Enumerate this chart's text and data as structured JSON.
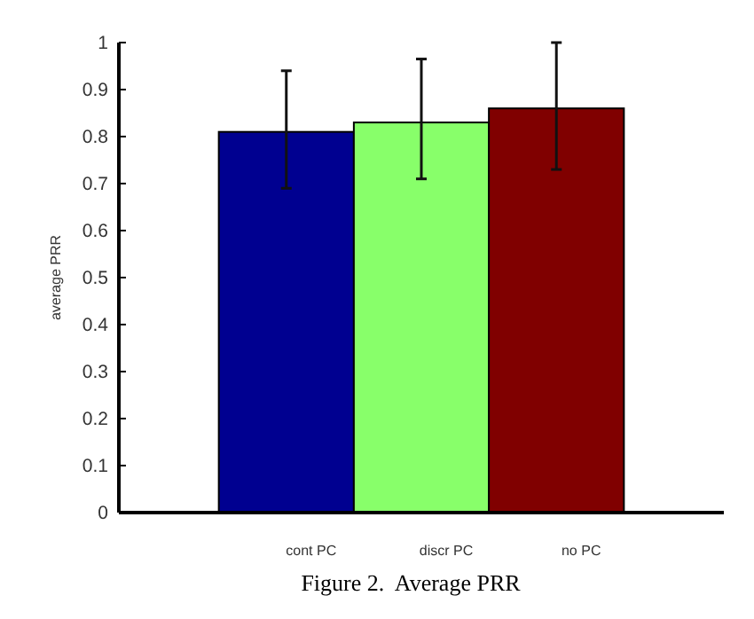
{
  "chart_data": {
    "type": "bar",
    "title": "Figure 2.  Average PRR",
    "ylabel": "average PRR",
    "categories": [
      "cont PC",
      "discr PC",
      "no PC"
    ],
    "values": [
      0.81,
      0.83,
      0.86
    ],
    "errors": [
      [
        0.69,
        0.94
      ],
      [
        0.71,
        0.965
      ],
      [
        0.73,
        1.0
      ]
    ],
    "colors": [
      "#000090",
      "#88ff6a",
      "#800000"
    ],
    "ylim": [
      0,
      1
    ],
    "yticks": [
      0,
      0.1,
      0.2,
      0.3,
      0.4,
      0.5,
      0.6,
      0.7,
      0.8,
      0.9,
      1
    ],
    "grid": false
  }
}
